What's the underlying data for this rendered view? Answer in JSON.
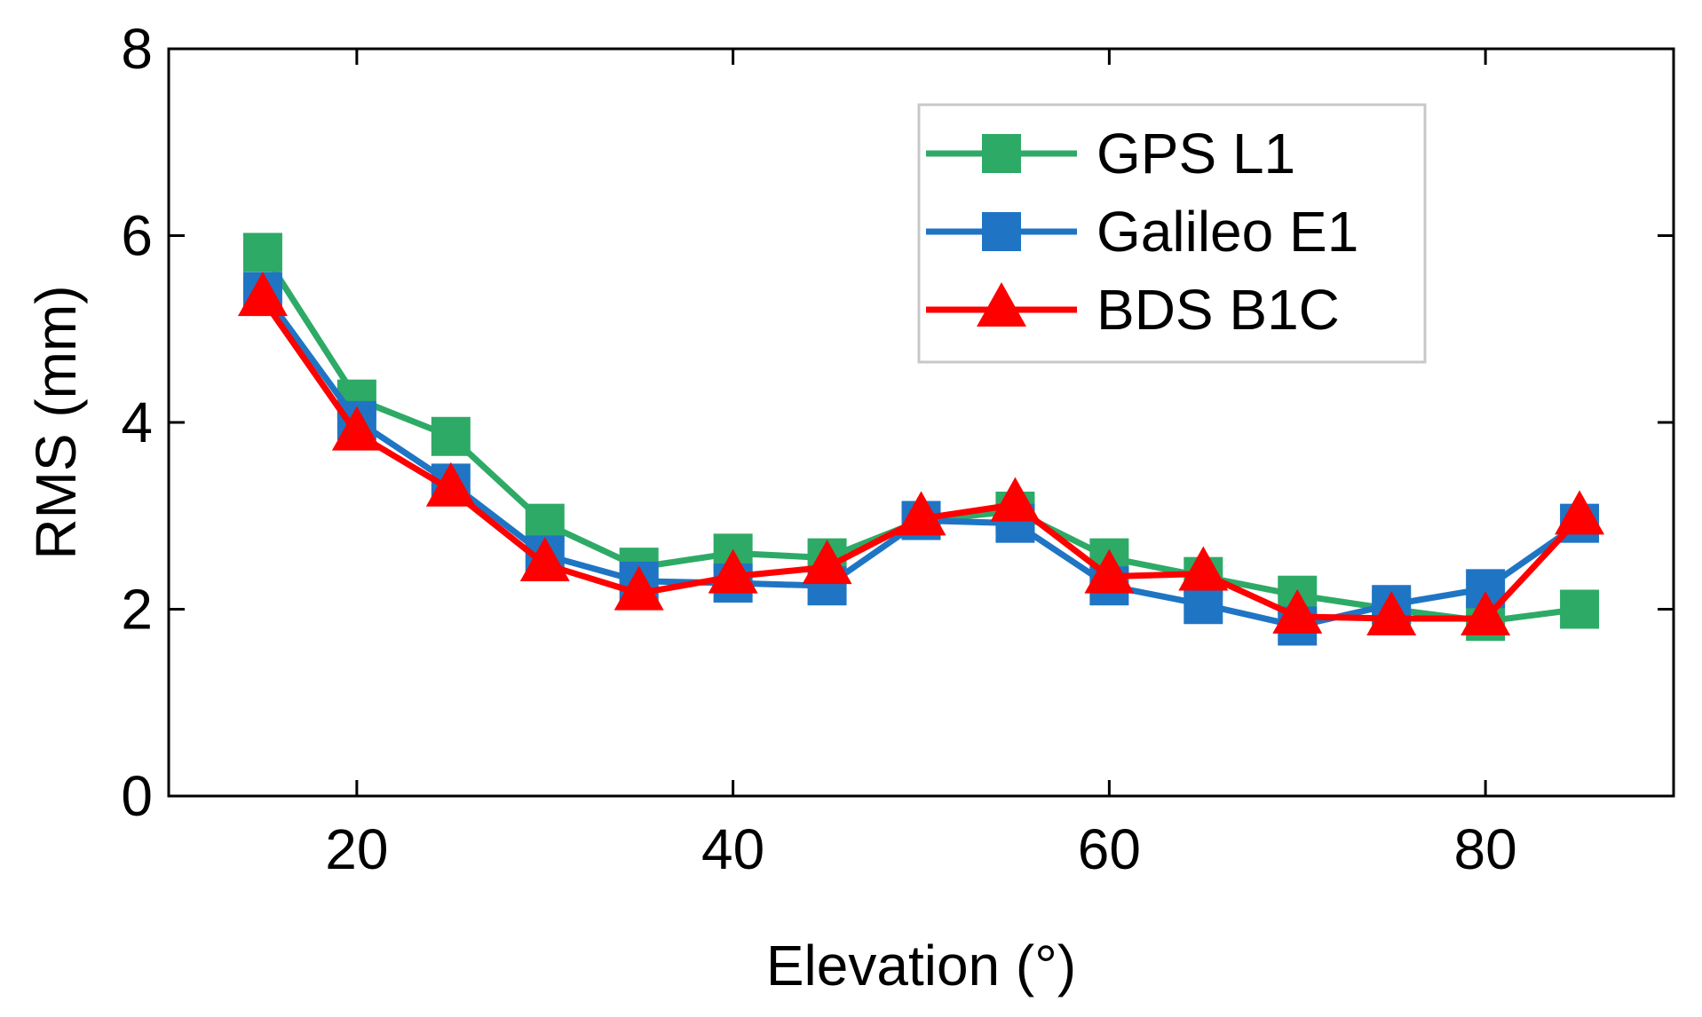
{
  "chart_data": {
    "type": "line",
    "title": "",
    "xlabel": "Elevation (°)",
    "ylabel": "RMS (mm)",
    "xlim": [
      10,
      90
    ],
    "ylim": [
      0,
      8
    ],
    "xticks": [
      20,
      40,
      60,
      80
    ],
    "yticks": [
      0,
      2,
      4,
      6,
      8
    ],
    "xtick_labels": [
      "20",
      "40",
      "60",
      "80"
    ],
    "ytick_labels": [
      "0",
      "2",
      "4",
      "6",
      "8"
    ],
    "legend_placement": "top-right",
    "x": [
      15,
      20,
      25,
      30,
      35,
      40,
      45,
      50,
      55,
      60,
      65,
      70,
      75,
      80,
      85
    ],
    "series": [
      {
        "name": "GPS L1",
        "color": "#2EAA67",
        "marker": "square",
        "values": [
          5.82,
          4.25,
          3.85,
          2.92,
          2.45,
          2.6,
          2.55,
          2.95,
          3.05,
          2.55,
          2.35,
          2.15,
          2.0,
          1.87,
          2.0
        ]
      },
      {
        "name": "Galileo E1",
        "color": "#1F75C4",
        "marker": "square",
        "values": [
          5.4,
          4.02,
          3.35,
          2.58,
          2.3,
          2.28,
          2.25,
          2.95,
          2.92,
          2.25,
          2.05,
          1.82,
          2.05,
          2.22,
          2.92
        ]
      },
      {
        "name": "BDS B1C",
        "color": "#FF0000",
        "marker": "triangle",
        "values": [
          5.32,
          3.88,
          3.28,
          2.48,
          2.17,
          2.35,
          2.45,
          2.97,
          3.12,
          2.35,
          2.38,
          1.92,
          1.9,
          1.9,
          2.98
        ]
      }
    ]
  }
}
